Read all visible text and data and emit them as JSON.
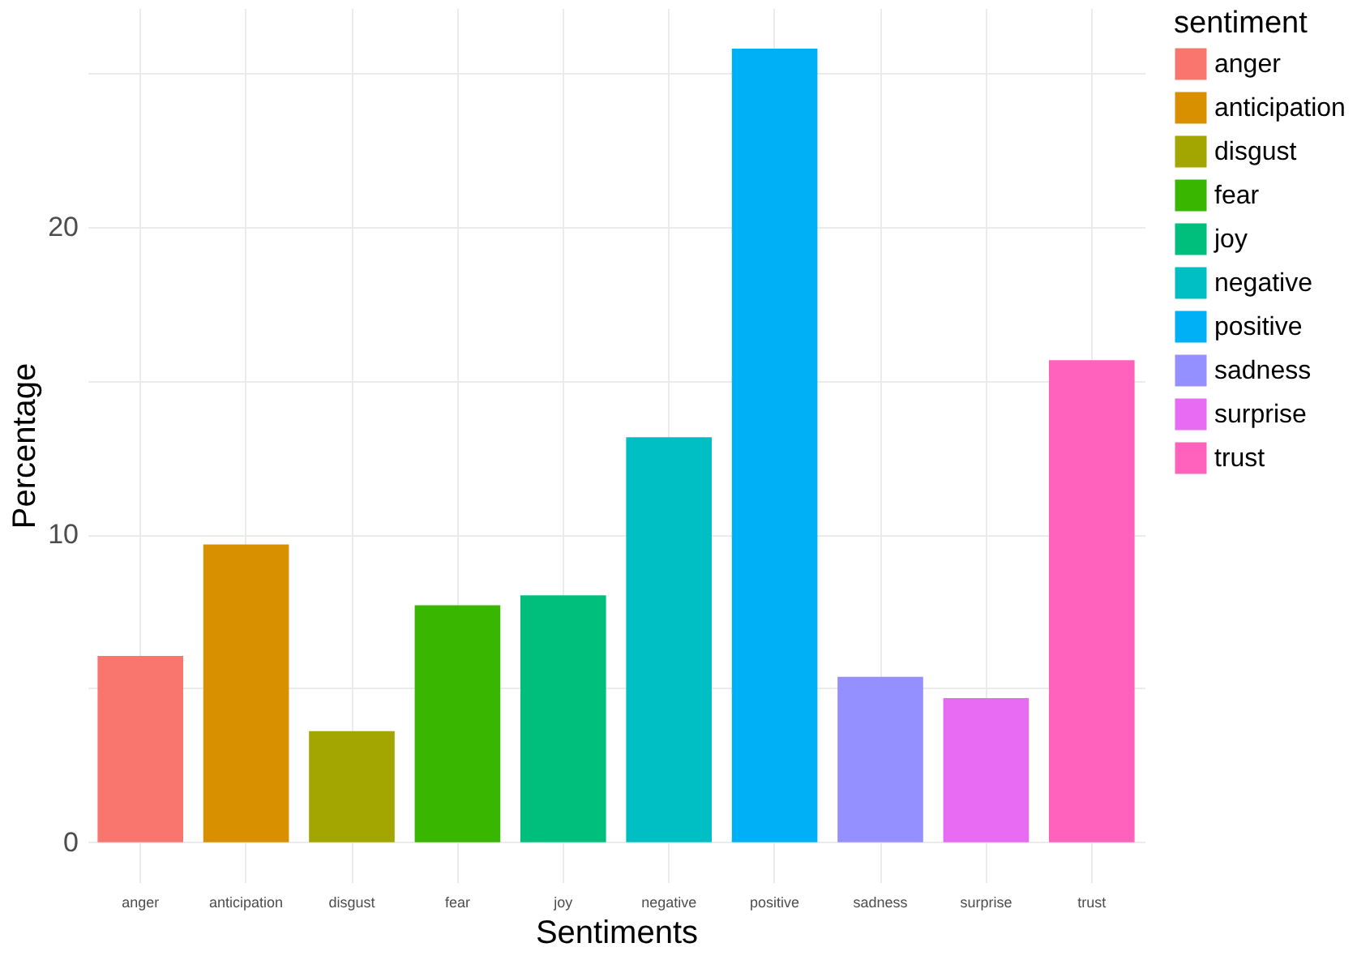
{
  "chart_data": {
    "type": "bar",
    "xlabel": "Sentiments",
    "ylabel": "Percentage",
    "legend_title": "sentiment",
    "categories": [
      "anger",
      "anticipation",
      "disgust",
      "fear",
      "joy",
      "negative",
      "positive",
      "sadness",
      "surprise",
      "trust"
    ],
    "series": [
      {
        "name": "anger",
        "color": "#f8766d",
        "values": [
          6.05,
          null,
          null,
          null,
          null,
          null,
          null,
          null,
          null,
          null
        ]
      },
      {
        "name": "anticipation",
        "color": "#d89000",
        "values": [
          null,
          9.67,
          null,
          null,
          null,
          null,
          null,
          null,
          null,
          null
        ]
      },
      {
        "name": "disgust",
        "color": "#a3a500",
        "values": [
          null,
          null,
          3.61,
          null,
          null,
          null,
          null,
          null,
          null,
          null
        ]
      },
      {
        "name": "fear",
        "color": "#39b600",
        "values": [
          null,
          null,
          null,
          7.7,
          null,
          null,
          null,
          null,
          null,
          null
        ]
      },
      {
        "name": "joy",
        "color": "#00bf7d",
        "values": [
          null,
          null,
          null,
          null,
          8.02,
          null,
          null,
          null,
          null,
          null
        ]
      },
      {
        "name": "negative",
        "color": "#00bfc4",
        "values": [
          null,
          null,
          null,
          null,
          null,
          13.16,
          null,
          null,
          null,
          null
        ]
      },
      {
        "name": "positive",
        "color": "#00b0f6",
        "values": [
          null,
          null,
          null,
          null,
          null,
          null,
          25.78,
          null,
          null,
          null
        ]
      },
      {
        "name": "sadness",
        "color": "#9590ff",
        "values": [
          null,
          null,
          null,
          null,
          null,
          null,
          null,
          5.37,
          null,
          null
        ]
      },
      {
        "name": "surprise",
        "color": "#e76bf3",
        "values": [
          null,
          null,
          null,
          null,
          null,
          null,
          null,
          null,
          4.68,
          null
        ]
      },
      {
        "name": "trust",
        "color": "#ff62bc",
        "values": [
          null,
          null,
          null,
          null,
          null,
          null,
          null,
          null,
          null,
          15.66
        ]
      }
    ],
    "ylim": [
      -1.3,
      27.1
    ],
    "yticks": [
      0,
      {
        "value": 5,
        "label": null
      },
      10,
      {
        "value": 15,
        "label": null
      },
      20,
      {
        "value": 25,
        "label": null
      }
    ],
    "grid": true,
    "legend": "right"
  }
}
